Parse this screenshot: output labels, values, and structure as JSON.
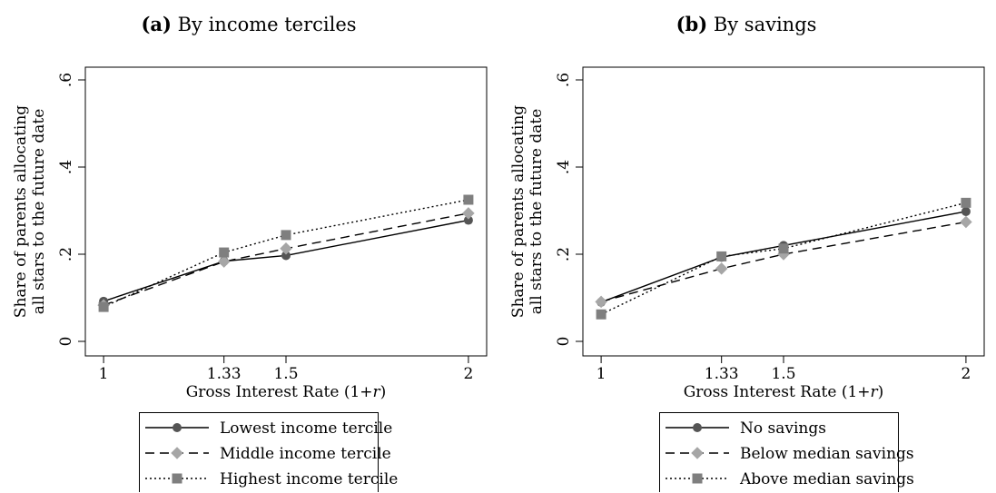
{
  "chart_data": [
    {
      "type": "line",
      "panel_label": "(a)",
      "title": "By income terciles",
      "xlabel": "Gross Interest Rate (1+r)",
      "ylabel_line1": "Share of parents allocating",
      "ylabel_line2": "all stars to the future date",
      "x": [
        1,
        1.33,
        1.5,
        2
      ],
      "x_tick_labels": [
        "1",
        "1.33",
        "1.5",
        "2"
      ],
      "y_ticks": [
        0,
        0.2,
        0.4,
        0.6
      ],
      "y_tick_labels": [
        "0",
        ".2",
        ".4",
        ".6"
      ],
      "xlim": [
        0.95,
        2.05
      ],
      "ylim": [
        0,
        0.6
      ],
      "grid": false,
      "legend_position": "bottom",
      "series": [
        {
          "name": "Lowest income tercile",
          "values": [
            0.092,
            0.184,
            0.197,
            0.278
          ],
          "marker": "circle",
          "line": "solid",
          "color": "#555555"
        },
        {
          "name": "Middle income tercile",
          "values": [
            0.083,
            0.183,
            0.213,
            0.294
          ],
          "marker": "diamond",
          "line": "dashed",
          "color": "#a6a6a6"
        },
        {
          "name": "Highest income tercile",
          "values": [
            0.079,
            0.204,
            0.244,
            0.325
          ],
          "marker": "square",
          "line": "dotted",
          "color": "#7f7f7f"
        }
      ]
    },
    {
      "type": "line",
      "panel_label": "(b)",
      "title": "By savings",
      "xlabel": "Gross Interest Rate (1+r)",
      "ylabel_line1": "Share of parents allocating",
      "ylabel_line2": "all stars to the future date",
      "x": [
        1,
        1.33,
        1.5,
        2
      ],
      "x_tick_labels": [
        "1",
        "1.33",
        "1.5",
        "2"
      ],
      "y_ticks": [
        0,
        0.2,
        0.4,
        0.6
      ],
      "y_tick_labels": [
        "0",
        ".2",
        ".4",
        ".6"
      ],
      "xlim": [
        0.95,
        2.05
      ],
      "ylim": [
        0,
        0.6
      ],
      "grid": false,
      "legend_position": "bottom",
      "series": [
        {
          "name": "No savings",
          "values": [
            0.09,
            0.193,
            0.22,
            0.298
          ],
          "marker": "circle",
          "line": "solid",
          "color": "#555555"
        },
        {
          "name": "Below median savings",
          "values": [
            0.091,
            0.167,
            0.2,
            0.274
          ],
          "marker": "diamond",
          "line": "dashed",
          "color": "#a6a6a6"
        },
        {
          "name": "Above median savings",
          "values": [
            0.062,
            0.195,
            0.213,
            0.318
          ],
          "marker": "square",
          "line": "dotted",
          "color": "#7f7f7f"
        }
      ]
    }
  ]
}
